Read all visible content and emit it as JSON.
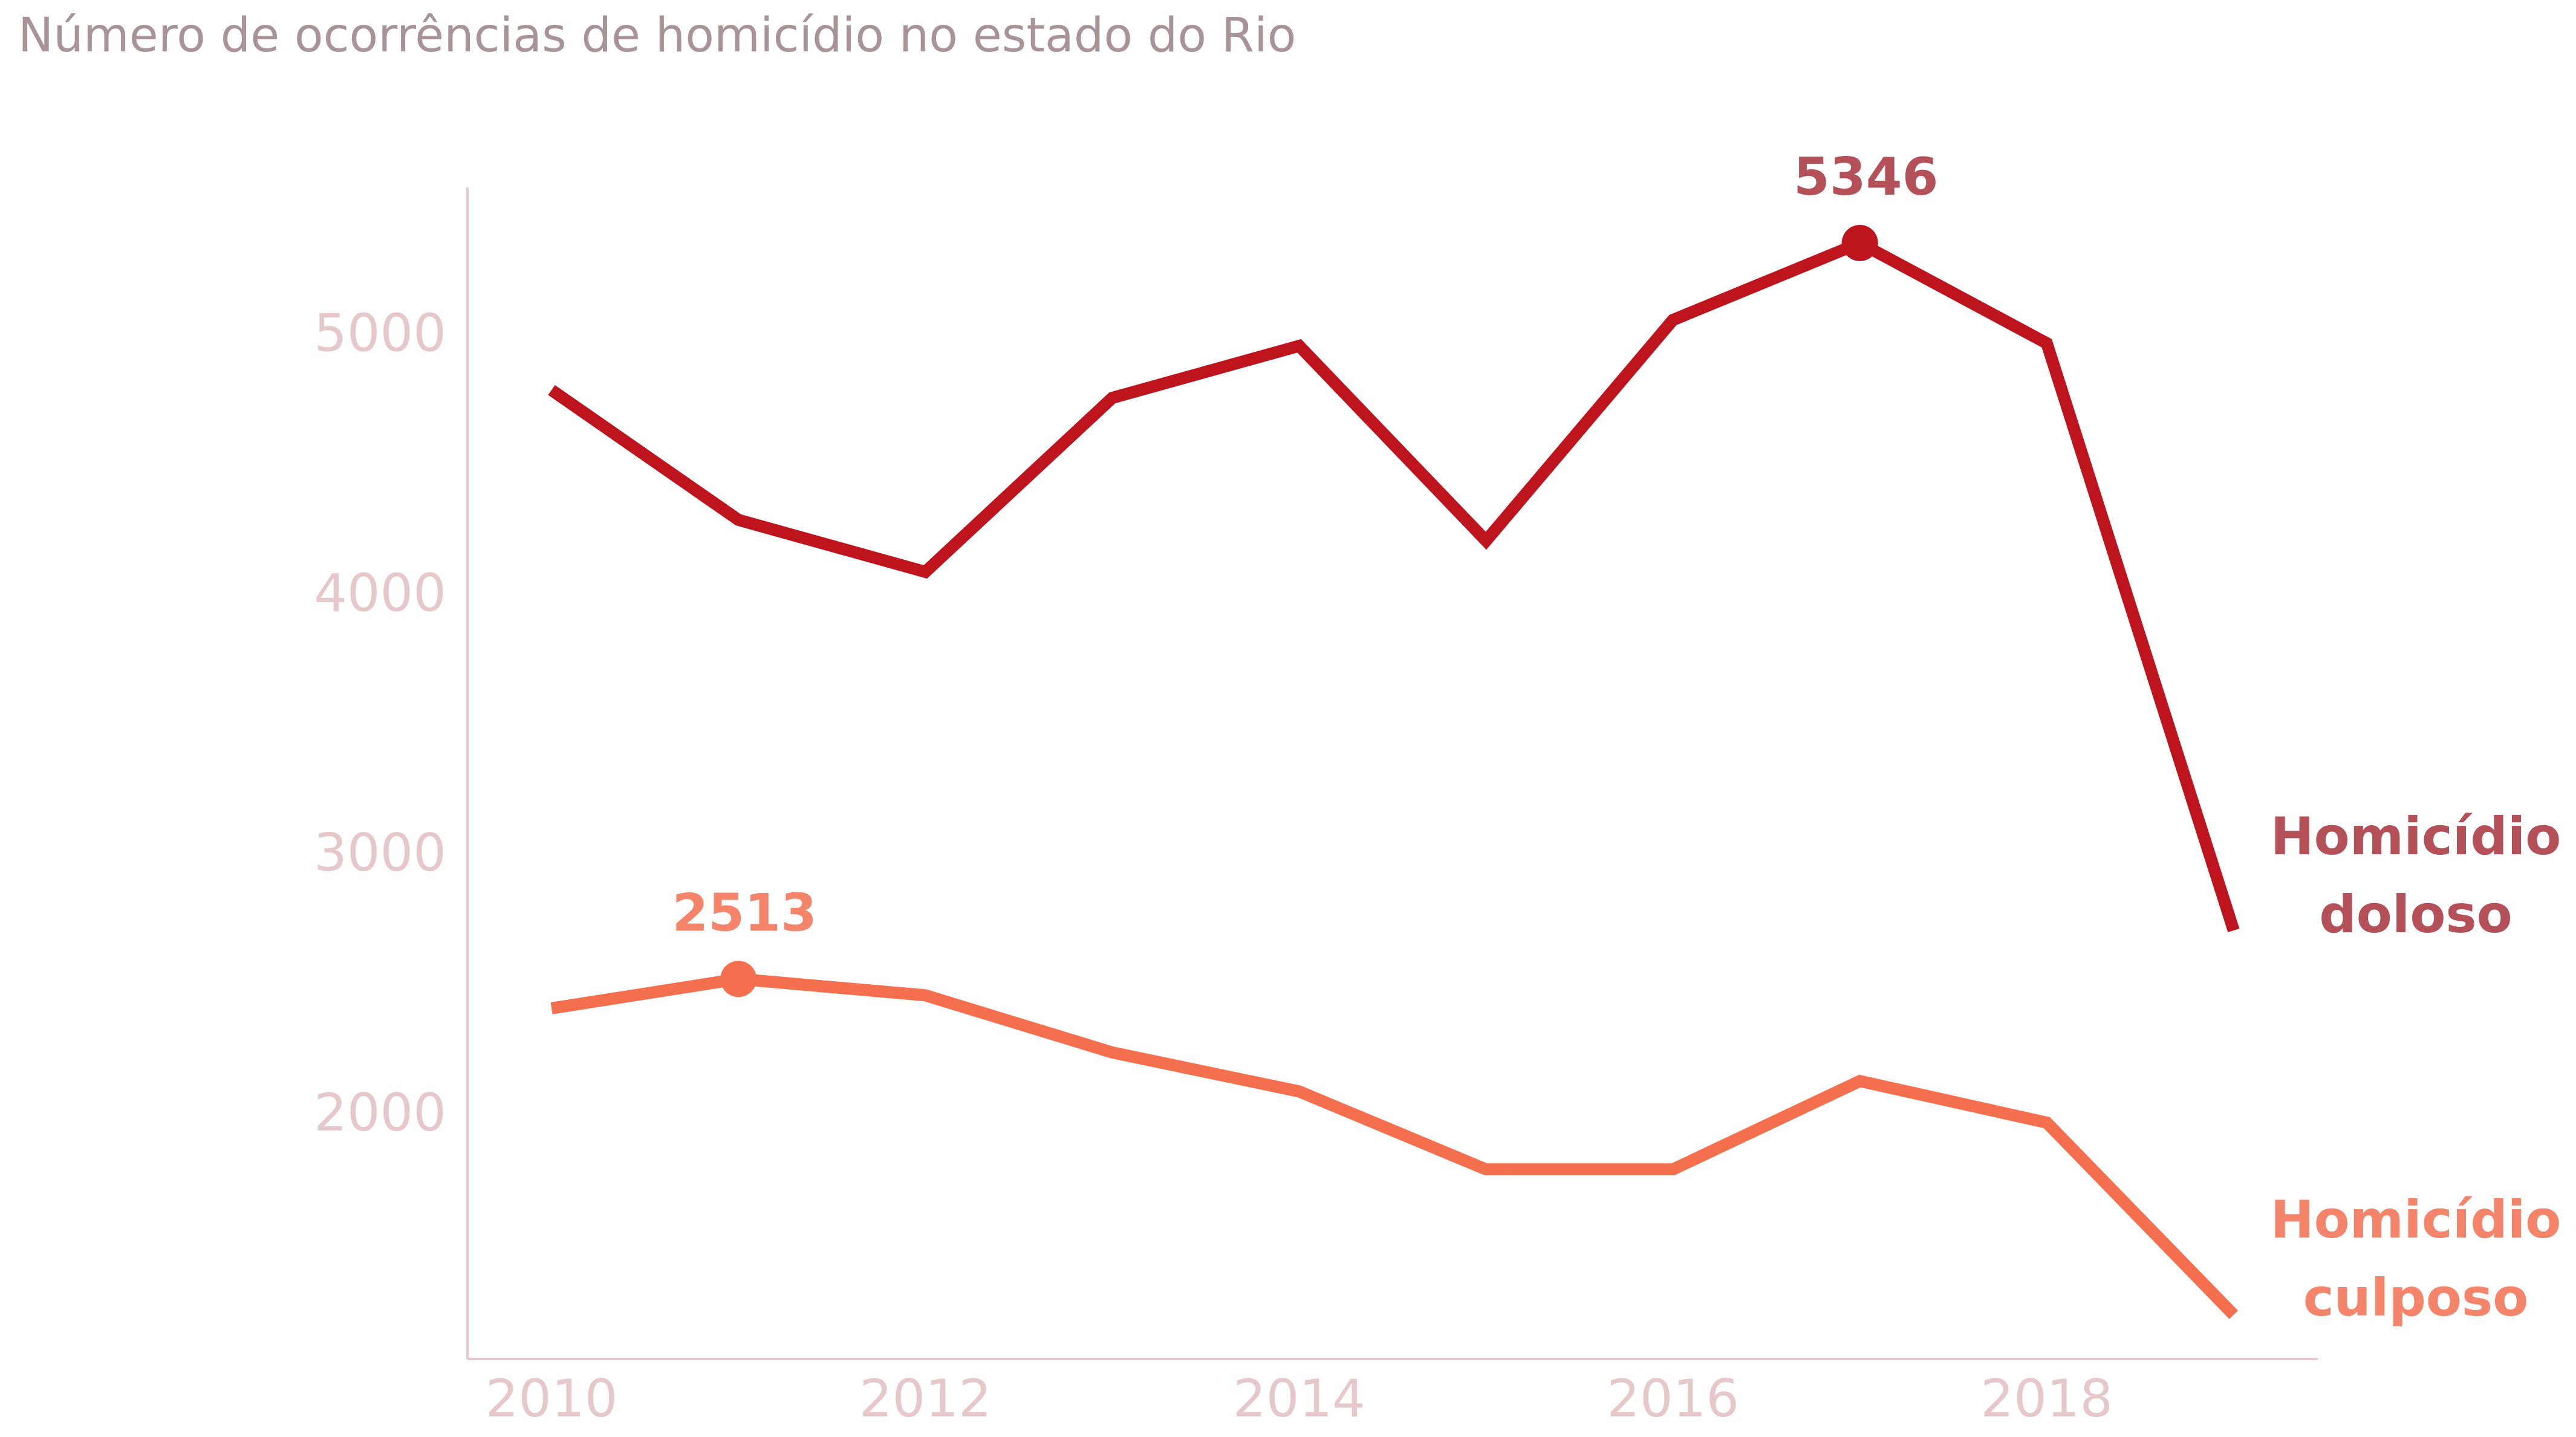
{
  "chart_data": {
    "type": "line",
    "title": "Número de ocorrências de homicídio no estado do Rio",
    "xlabel": "",
    "ylabel": "",
    "x": [
      2010,
      2011,
      2012,
      2013,
      2014,
      2015,
      2016,
      2017,
      2018,
      2019
    ],
    "xticks": [
      "2010",
      "2012",
      "2014",
      "2016",
      "2018"
    ],
    "yticks": [
      "2000",
      "3000",
      "4000",
      "5000"
    ],
    "xlim": [
      2009.55,
      2019.45
    ],
    "ylim": [
      1050,
      5560
    ],
    "grid": false,
    "series": [
      {
        "name": "Homicídio doloso",
        "label_lines": [
          "Homicídio",
          "doloso"
        ],
        "color": "#BE141E",
        "label_color": "#B45058",
        "values": [
          4780,
          4280,
          4080,
          4750,
          4950,
          4200,
          5050,
          5346,
          4960,
          2700
        ],
        "highlight": {
          "x": 2017,
          "value": 5346,
          "label": "5346"
        }
      },
      {
        "name": "Homicídio culposo",
        "label_lines": [
          "Homicídio",
          "culposo"
        ],
        "color": "#F46F4E",
        "label_color": "#F4846A",
        "values": [
          2400,
          2513,
          2450,
          2230,
          2080,
          1780,
          1780,
          2120,
          1960,
          1220
        ],
        "highlight": {
          "x": 2011,
          "value": 2513,
          "label": "2513"
        }
      }
    ]
  },
  "colors": {
    "title": "#A89497",
    "tick_label": "#E6C8CA",
    "axis": "#E6C8CA"
  }
}
